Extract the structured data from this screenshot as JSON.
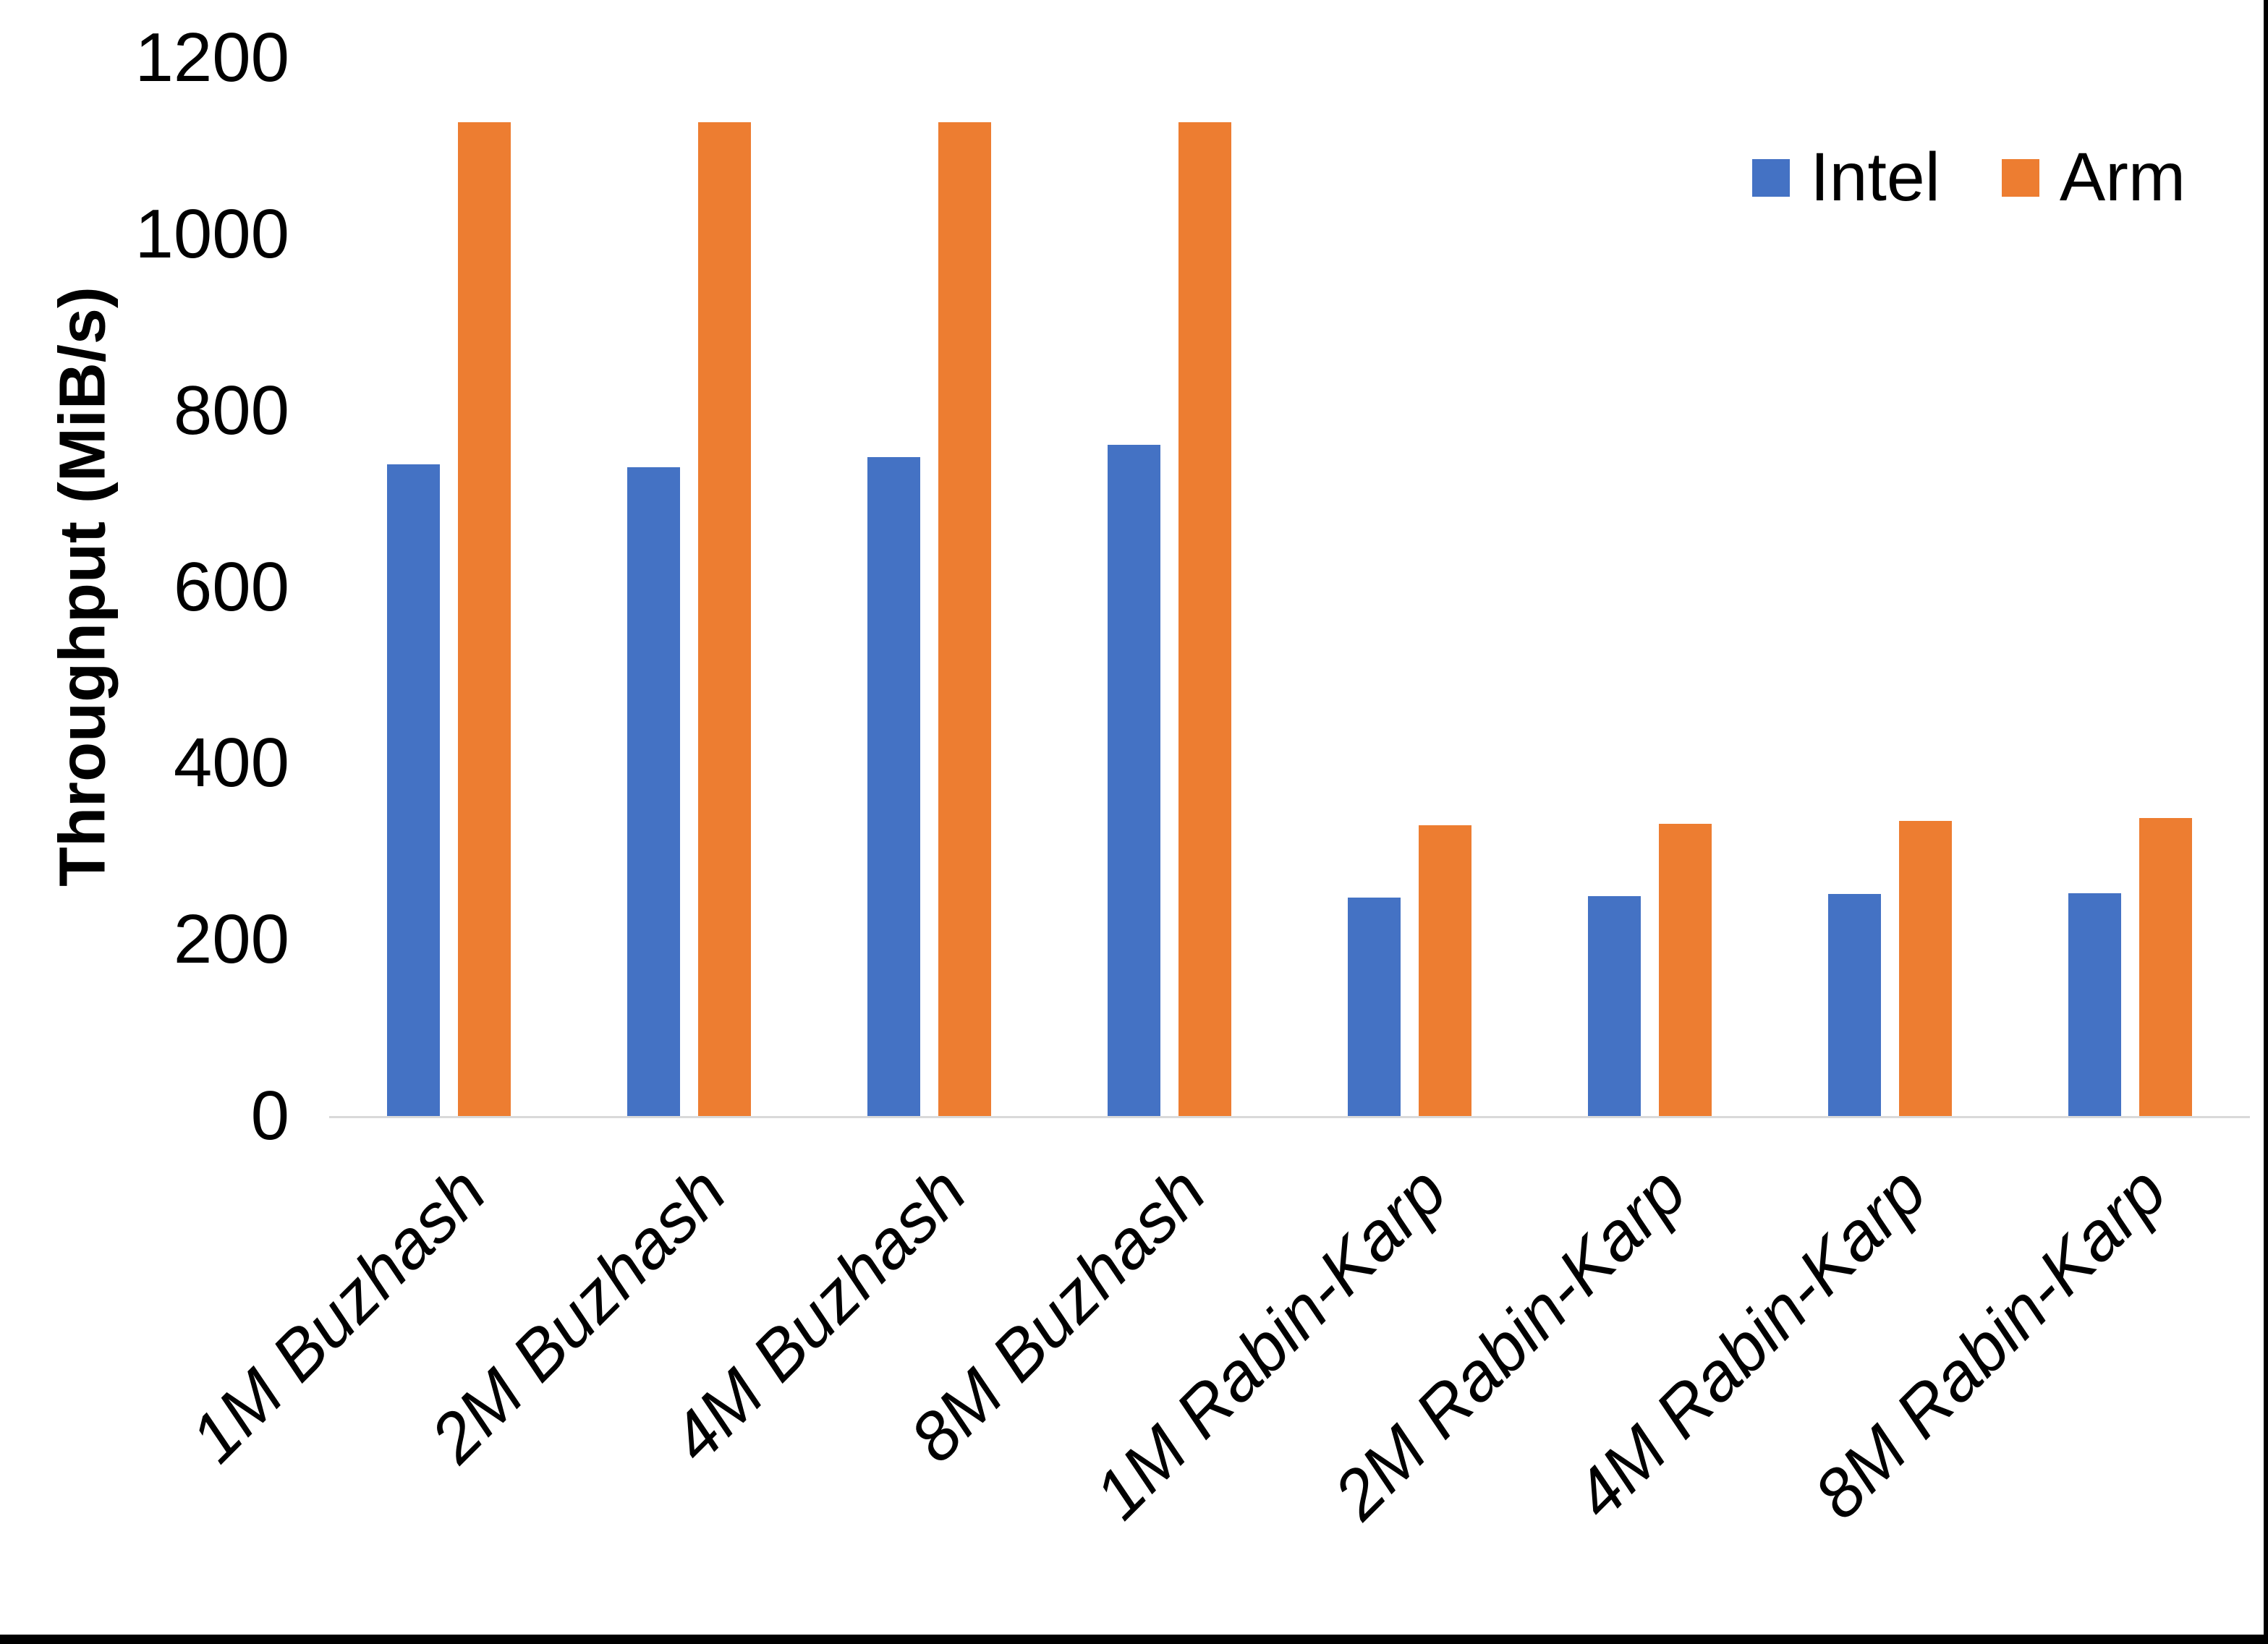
{
  "figure": {
    "background": "#ffffff",
    "edge_border_color": "#000000",
    "axis_line_color": "#d9d9d9",
    "text_color": "#000000"
  },
  "chart_data": {
    "type": "bar",
    "title": "",
    "xlabel": "",
    "ylabel": "Throughput (MiB/s)",
    "ylim": [
      0,
      1200
    ],
    "yticks": [
      0,
      200,
      400,
      600,
      800,
      1000,
      1200
    ],
    "grid": false,
    "legend_position": "top-right",
    "categories": [
      "1M Buzhash",
      "2M Buzhash",
      "4M Buzhash",
      "8M Buzhash",
      "1M Rabin-Karp",
      "2M Rabin-Karp",
      "4M Rabin-Karp",
      "8M Rabin-Karp"
    ],
    "series": [
      {
        "name": "Intel",
        "color": "#4472C4",
        "values": [
          739,
          736,
          747,
          761,
          248,
          249,
          252,
          253
        ]
      },
      {
        "name": "Arm",
        "color": "#ED7D31",
        "values": [
          1127,
          1127,
          1127,
          1127,
          330,
          331,
          335,
          338
        ]
      }
    ]
  }
}
